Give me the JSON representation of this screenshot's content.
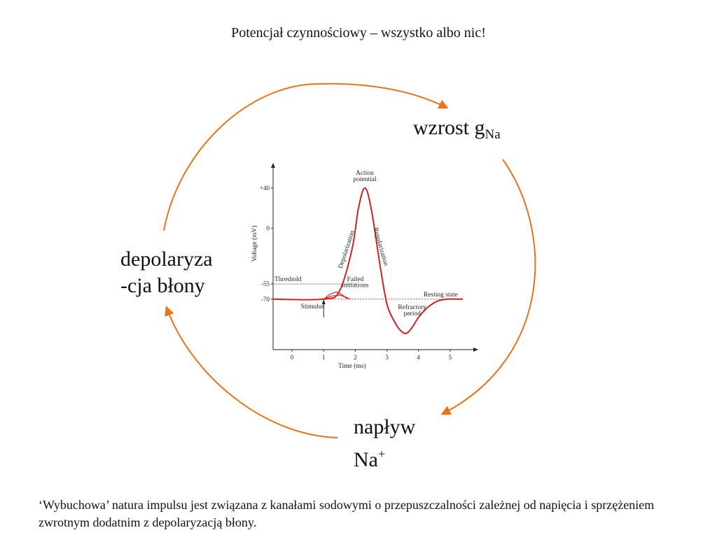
{
  "title": "Potencjał czynnościowy – wszystko albo nic!",
  "cycle": {
    "top_label_main": "wzrost g",
    "top_label_sub": "Na",
    "left_label_line1": "depolaryza",
    "left_label_line2": "-cja błony",
    "bottom_label_line1": "napływ",
    "bottom_label_line2_main": "Na",
    "bottom_label_line2_sup": "+",
    "arrow_color": "#e8731a"
  },
  "footnote": "‘Wybuchowa’ natura impulsu jest związana z kanałami sodowymi o przepuszczalności zależnej od napięcia i sprzężeniem zwrotnym dodatnim z depolaryzacją błony.",
  "chart_data": {
    "type": "line",
    "xlabel": "Time (ms)",
    "ylabel": "Voltage (mV)",
    "x_ticks": [
      0,
      1,
      2,
      3,
      4,
      5
    ],
    "y_ticks": [
      -70,
      -55,
      0,
      40
    ],
    "xlim": [
      -0.6,
      5.6
    ],
    "ylim": [
      -120,
      60
    ],
    "line_color": "#d42020",
    "series": [
      {
        "x": [
          -0.6,
          1.0,
          1.5,
          1.9,
          2.1,
          2.3,
          2.5,
          2.8,
          3.0,
          3.2,
          3.4,
          3.6,
          3.8,
          4.0,
          4.3,
          4.6,
          4.9,
          5.1,
          5.4
        ],
        "y": [
          -70,
          -70,
          -62,
          -20,
          20,
          40,
          20,
          -40,
          -75,
          -90,
          -100,
          -104,
          -98,
          -88,
          -78,
          -72,
          -70,
          -70,
          -70
        ]
      }
    ],
    "failed_initiations": [
      {
        "x": [
          1.0,
          1.2,
          1.4,
          1.6,
          1.75
        ],
        "y": [
          -70,
          -65,
          -63,
          -66,
          -70
        ]
      },
      {
        "x": [
          1.0,
          1.25,
          1.5,
          1.7,
          1.85
        ],
        "y": [
          -70,
          -67,
          -66,
          -68,
          -70
        ]
      }
    ],
    "threshold": {
      "value": -55,
      "label": "Threshold"
    },
    "resting": {
      "value": -70,
      "label": "Resting state"
    },
    "annotations": {
      "action_line1": "Action",
      "action_line2": "potential",
      "depolarization": "Depolarization",
      "repolarization": "Repolarization",
      "failed_line1": "Failed",
      "failed_line2": "initiations",
      "refractory_line1": "Refractory",
      "refractory_line2": "period",
      "stimulus": "Stimulus"
    }
  }
}
